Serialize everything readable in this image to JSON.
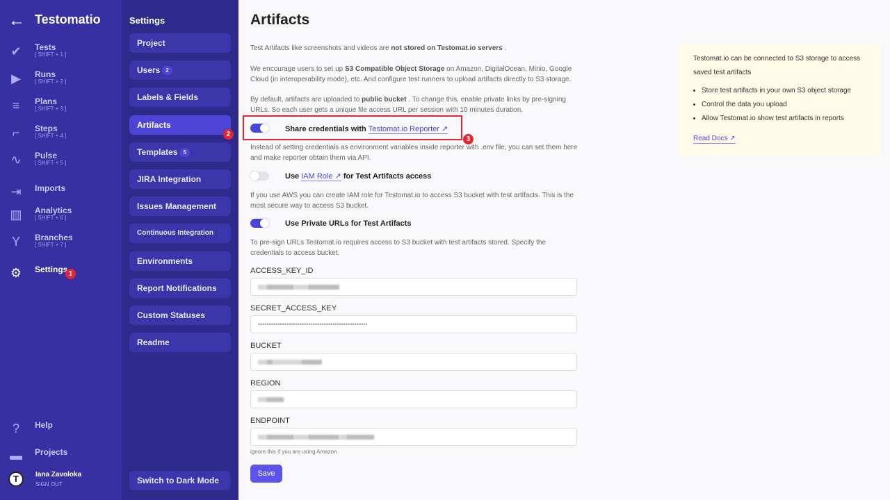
{
  "app": {
    "title": "Testomatio",
    "back_icon": "arrow-left-icon"
  },
  "nav": {
    "items": [
      {
        "label": "Tests",
        "shortcut": "[ SHIFT + 1 ]",
        "icon": "check-icon"
      },
      {
        "label": "Runs",
        "shortcut": "[ SHIFT + 2 ]",
        "icon": "play-circle-icon"
      },
      {
        "label": "Plans",
        "shortcut": "[ SHIFT + 3 ]",
        "icon": "list-check-icon"
      },
      {
        "label": "Steps",
        "shortcut": "[ SHIFT + 4 ]",
        "icon": "stairs-icon"
      },
      {
        "label": "Pulse",
        "shortcut": "[ SHIFT + 5 ]",
        "icon": "pulse-icon"
      },
      {
        "label": "Imports",
        "shortcut": "",
        "icon": "import-icon"
      },
      {
        "label": "Analytics",
        "shortcut": "[ SHIFT + 6 ]",
        "icon": "chart-icon"
      },
      {
        "label": "Branches",
        "shortcut": "[ SHIFT + 7 ]",
        "icon": "branch-icon"
      },
      {
        "label": "Settings",
        "shortcut": "",
        "icon": "gear-icon"
      }
    ],
    "help": "Help",
    "projects": "Projects",
    "user": {
      "name": "Iana Zavoloka",
      "sign_out": "SIGN OUT"
    }
  },
  "annotations": [
    "1",
    "2",
    "3"
  ],
  "settings": {
    "title": "Settings",
    "items": [
      {
        "label": "Project"
      },
      {
        "label": "Users",
        "count": "2"
      },
      {
        "label": "Labels & Fields"
      },
      {
        "label": "Artifacts"
      },
      {
        "label": "Templates",
        "count": "5"
      },
      {
        "label": "JIRA Integration"
      },
      {
        "label": "Issues Management"
      },
      {
        "label": "Continuous Integration"
      },
      {
        "label": "Environments"
      },
      {
        "label": "Report Notifications"
      },
      {
        "label": "Custom Statuses"
      },
      {
        "label": "Readme"
      }
    ],
    "dark_mode": "Switch to Dark Mode"
  },
  "main": {
    "title": "Artifacts",
    "p1": {
      "a": "Test Artifacts like screenshots and videos are ",
      "b": "not stored on Testomat.io servers",
      "c": " ."
    },
    "p2": {
      "a": "We encourage users to set up ",
      "b": "S3 Compatible Object Storage",
      "c": " on Amazon, DigitalOcean, Minio, Google Cloud (in interoperability mode), etc. And configure test runners to upload artifacts directly to S3 storage."
    },
    "p3": {
      "a": "By default, artifacts are uploaded to ",
      "b": "public bucket",
      "c": " . To change this, enable private links by pre-signing URLs. So each user gets a unique file access URL per session with 10 minutes duration."
    },
    "toggle1": {
      "on": true,
      "label": "Share credentials with ",
      "link": "Testomat.io Reporter ↗",
      "desc": "Instead of setting credentials as environment variables inside reporter with .env file, you can set them here and make reporter obtain them via API."
    },
    "toggle2": {
      "on": false,
      "pre": "Use ",
      "link": "IAM Role ↗",
      "post": " for Test Artifacts access",
      "desc": "If you use AWS you can create IAM role for Testomat.io to access S3 bucket with test artifacts. This is the most secure way to access S3 bucket."
    },
    "toggle3": {
      "on": true,
      "label": "Use Private URLs for Test Artifacts",
      "desc": "To pre-sign URLs Testomat.io requires access to S3 bucket with test artifacts stored. Specify the credentials to access bucket."
    },
    "fields": [
      {
        "label": "ACCESS_KEY_ID"
      },
      {
        "label": "SECRET_ACCESS_KEY",
        "value": "••••••••••••••••••••••••••••••••••••••••••••••••••"
      },
      {
        "label": "BUCKET"
      },
      {
        "label": "REGION"
      },
      {
        "label": "ENDPOINT"
      }
    ],
    "endpoint_hint": "ignore this if you are using Amazon",
    "save": "Save"
  },
  "info": {
    "text": "Testomat.io can be connected to S3 storage to access saved test artifacts",
    "bullets": [
      "Store test artifacts in your own S3 object storage",
      "Control the data you upload",
      "Allow Testomat.io show test artifacts in reports"
    ],
    "link": "Read Docs ↗"
  }
}
